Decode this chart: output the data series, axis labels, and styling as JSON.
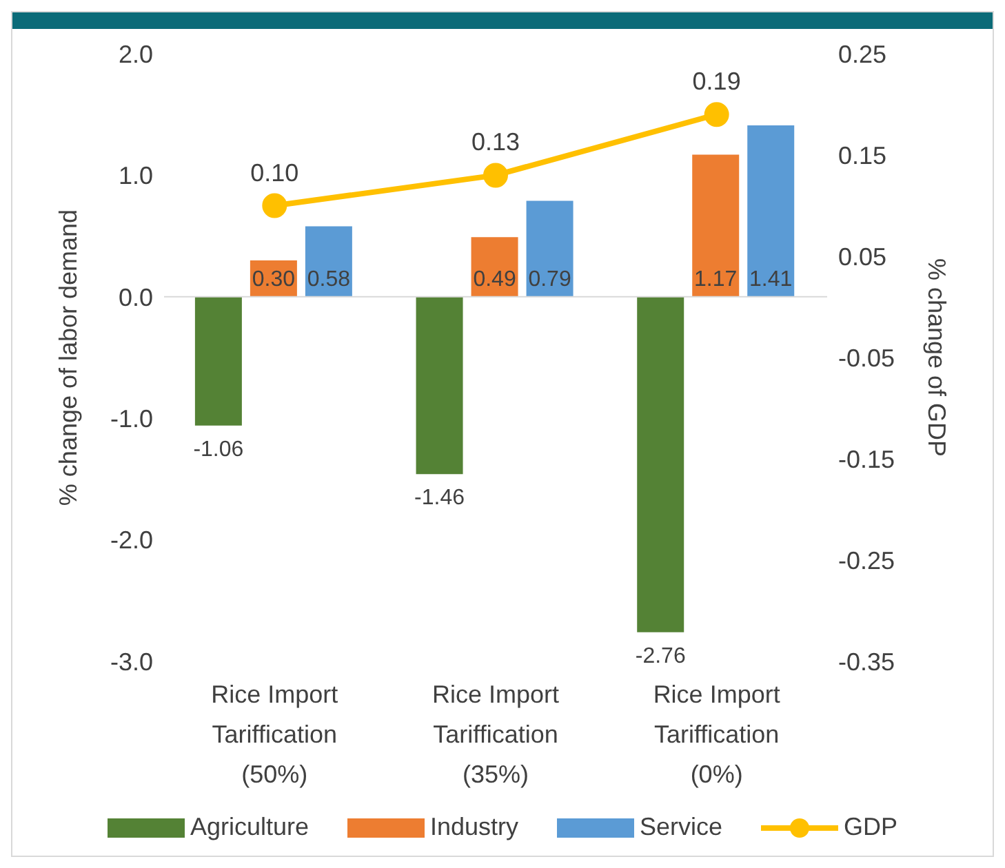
{
  "chart_data": {
    "type": "bar",
    "ylabel": "% change of labor demand",
    "y2label": "% change of GDP",
    "categories": [
      "Rice Import Tariffication (50%)",
      "Rice Import Tariffication (35%)",
      "Rice Import Tariffication (0%)"
    ],
    "series": [
      {
        "name": "Agriculture",
        "color": "#548235",
        "values": [
          -1.06,
          -1.46,
          -2.76
        ],
        "value_labels": [
          "-1.06",
          "-1.46",
          "-2.76"
        ]
      },
      {
        "name": "Industry",
        "color": "#ed7d31",
        "values": [
          0.3,
          0.49,
          1.17
        ],
        "value_labels": [
          "0.30",
          "0.49",
          "1.17"
        ]
      },
      {
        "name": "Service",
        "color": "#5b9bd5",
        "values": [
          0.58,
          0.79,
          1.41
        ],
        "value_labels": [
          "0.58",
          "0.79",
          "1.41"
        ]
      },
      {
        "name": "GDP",
        "type": "line",
        "axis": "y2",
        "color": "#ffc000",
        "marker": "circle",
        "values": [
          0.1,
          0.13,
          0.19
        ],
        "value_labels": [
          "0.10",
          "0.13",
          "0.19"
        ]
      }
    ],
    "ylim": [
      -3,
      2
    ],
    "yticks": [
      {
        "value": -3,
        "label": "-3.0"
      },
      {
        "value": -2,
        "label": "-2.0"
      },
      {
        "value": -1,
        "label": "-1.0"
      },
      {
        "value": 0,
        "label": "0.0"
      },
      {
        "value": 1,
        "label": "1.0"
      },
      {
        "value": 2,
        "label": "2.0"
      }
    ],
    "y2lim": [
      -0.35,
      0.25
    ],
    "y2ticks": [
      -0.35,
      -0.25,
      -0.15,
      -0.05,
      0.05,
      0.15,
      0.25
    ],
    "legend": "bottom"
  }
}
